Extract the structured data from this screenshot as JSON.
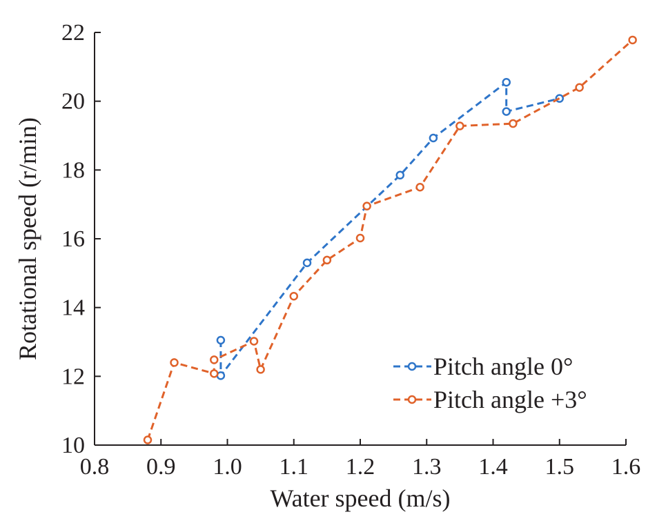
{
  "chart_data": {
    "type": "line",
    "title": "",
    "xlabel": "Water speed (m/s)",
    "ylabel": "Rotational speed (r/min)",
    "xlim": [
      0.8,
      1.6
    ],
    "ylim": [
      10,
      22
    ],
    "xticks": [
      0.8,
      0.9,
      1.0,
      1.1,
      1.2,
      1.3,
      1.4,
      1.5,
      1.6
    ],
    "xtick_labels": [
      "0.8",
      "0.9",
      "1.0",
      "1.1",
      "1.2",
      "1.3",
      "1.4",
      "1.5",
      "1.6"
    ],
    "yticks": [
      10,
      12,
      14,
      16,
      18,
      20,
      22
    ],
    "ytick_labels": [
      "10",
      "12",
      "14",
      "16",
      "18",
      "20",
      "22"
    ],
    "grid": false,
    "legend_position": "bottom-right",
    "series": [
      {
        "name": "Pitch angle 0°",
        "color": "#2e75c9",
        "line_style": "dashed",
        "marker": "open-circle",
        "x": [
          0.99,
          0.99,
          1.12,
          1.26,
          1.31,
          1.42,
          1.42,
          1.5
        ],
        "y": [
          13.05,
          12.02,
          15.3,
          17.85,
          18.93,
          20.55,
          19.7,
          20.08
        ]
      },
      {
        "name": "Pitch angle +3°",
        "color": "#e0622a",
        "line_style": "dashed",
        "marker": "open-circle",
        "x": [
          0.88,
          0.92,
          0.98,
          0.98,
          1.04,
          1.05,
          1.1,
          1.15,
          1.2,
          1.21,
          1.29,
          1.35,
          1.43,
          1.53,
          1.61
        ],
        "y": [
          10.15,
          12.4,
          12.08,
          12.48,
          13.02,
          12.2,
          14.33,
          15.38,
          16.02,
          16.95,
          17.5,
          19.28,
          19.35,
          20.4,
          21.78
        ]
      }
    ]
  }
}
